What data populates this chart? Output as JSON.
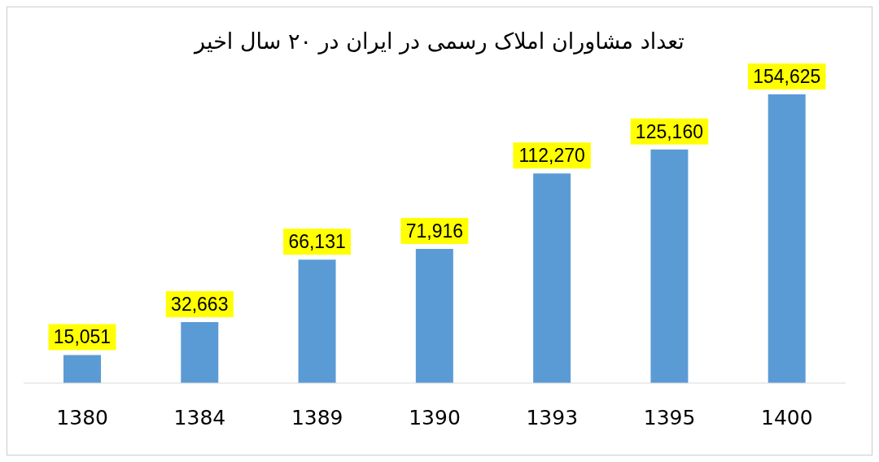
{
  "chart_data": {
    "type": "bar",
    "title": "تعداد مشاوران املاک رسمی در ایران در ۲۰ سال اخیر",
    "categories": [
      "1380",
      "1384",
      "1389",
      "1390",
      "1393",
      "1395",
      "1400"
    ],
    "values": [
      15051,
      32663,
      66131,
      71916,
      112270,
      125160,
      154625
    ],
    "value_labels": [
      "15,051",
      "32,663",
      "66,131",
      "71,916",
      "112,270",
      "125,160",
      "154,625"
    ],
    "color": "#5b9bd5"
  }
}
